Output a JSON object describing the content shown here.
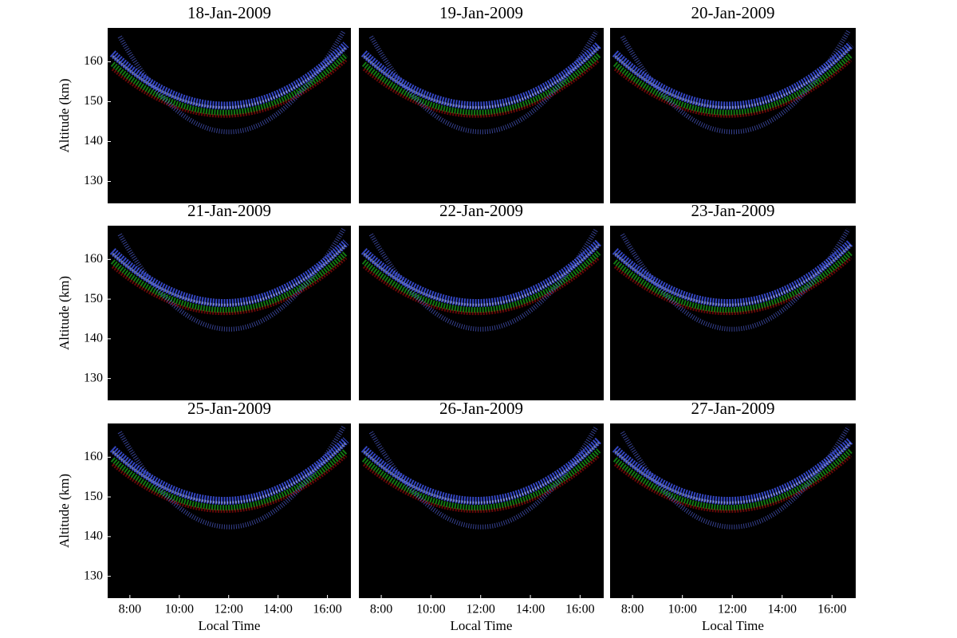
{
  "chart_data": [
    {
      "type": "heatmap",
      "title": "18-Jan-2009",
      "ylabel": "Altitude (km)",
      "xlim": [
        7.1,
        16.95
      ],
      "ylim": [
        124.5,
        168.5
      ],
      "yticks": [
        130,
        140,
        150,
        160
      ]
    },
    {
      "type": "heatmap",
      "title": "19-Jan-2009",
      "xlim": [
        7.1,
        16.95
      ],
      "ylim": [
        124.5,
        168.5
      ]
    },
    {
      "type": "heatmap",
      "title": "20-Jan-2009",
      "xlim": [
        7.1,
        16.95
      ],
      "ylim": [
        124.5,
        168.5
      ]
    },
    {
      "type": "heatmap",
      "title": "21-Jan-2009",
      "ylabel": "Altitude (km)",
      "xlim": [
        7.1,
        16.95
      ],
      "ylim": [
        124.5,
        168.5
      ],
      "yticks": [
        130,
        140,
        150,
        160
      ]
    },
    {
      "type": "heatmap",
      "title": "22-Jan-2009",
      "xlim": [
        7.1,
        16.95
      ],
      "ylim": [
        124.5,
        168.5
      ]
    },
    {
      "type": "heatmap",
      "title": "23-Jan-2009",
      "xlim": [
        7.1,
        16.95
      ],
      "ylim": [
        124.5,
        168.5
      ]
    },
    {
      "type": "heatmap",
      "title": "25-Jan-2009",
      "ylabel": "Altitude (km)",
      "xlabel": "Local Time",
      "xlim": [
        7.1,
        16.95
      ],
      "ylim": [
        124.5,
        168.5
      ],
      "yticks": [
        130,
        140,
        150,
        160
      ],
      "xticks": [
        {
          "value": 8,
          "label": "8:00"
        },
        {
          "value": 10,
          "label": "10:00"
        },
        {
          "value": 12,
          "label": "12:00"
        },
        {
          "value": 14,
          "label": "14:00"
        },
        {
          "value": 16,
          "label": "16:00"
        }
      ]
    },
    {
      "type": "heatmap",
      "title": "26-Jan-2009",
      "xlabel": "Local Time",
      "xlim": [
        7.1,
        16.95
      ],
      "ylim": [
        124.5,
        168.5
      ],
      "xticks": [
        {
          "value": 8,
          "label": "8:00"
        },
        {
          "value": 10,
          "label": "10:00"
        },
        {
          "value": 12,
          "label": "12:00"
        },
        {
          "value": 14,
          "label": "14:00"
        },
        {
          "value": 16,
          "label": "16:00"
        }
      ]
    },
    {
      "type": "heatmap",
      "title": "27-Jan-2009",
      "xlabel": "Local Time",
      "xlim": [
        7.1,
        16.95
      ],
      "ylim": [
        124.5,
        168.5
      ],
      "xticks": [
        {
          "value": 8,
          "label": "8:00"
        },
        {
          "value": 10,
          "label": "10:00"
        },
        {
          "value": 12,
          "label": "12:00"
        },
        {
          "value": 14,
          "label": "14:00"
        },
        {
          "value": 16,
          "label": "16:00"
        }
      ]
    }
  ]
}
